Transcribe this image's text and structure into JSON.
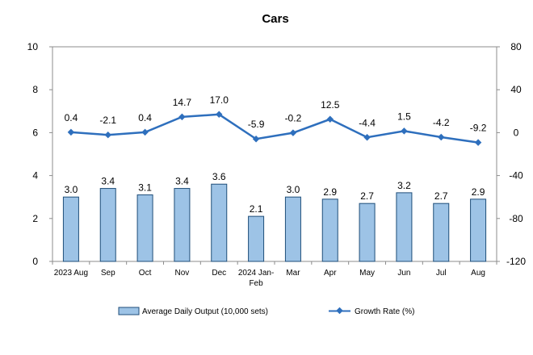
{
  "chart_data": {
    "type": "bar",
    "title": "Cars",
    "categories": [
      "2023 Aug",
      "Sep",
      "Oct",
      "Nov",
      "Dec",
      "2024 Jan-Feb",
      "Mar",
      "Apr",
      "May",
      "Jun",
      "Jul",
      "Aug"
    ],
    "series": [
      {
        "name": "Average Daily Output (10,000 sets)",
        "type": "bar",
        "axis": "left",
        "values": [
          3.0,
          3.4,
          3.1,
          3.4,
          3.6,
          2.1,
          3.0,
          2.9,
          2.7,
          3.2,
          2.7,
          2.9
        ],
        "labels": [
          "3.0",
          "3.4",
          "3.1",
          "3.4",
          "3.6",
          "2.1",
          "3.0",
          "2.9",
          "2.7",
          "3.2",
          "2.7",
          "2.9"
        ],
        "color": "#9dc3e6",
        "border": "#1f4e79"
      },
      {
        "name": "Growth Rate (%)",
        "type": "line",
        "axis": "right",
        "values": [
          0.4,
          -2.1,
          0.4,
          14.7,
          17.0,
          -5.9,
          -0.2,
          12.5,
          -4.4,
          1.5,
          -4.2,
          -9.2
        ],
        "labels": [
          "0.4",
          "-2.1",
          "0.4",
          "14.7",
          "17.0",
          "-5.9",
          "-0.2",
          "12.5",
          "-4.4",
          "1.5",
          "-4.2",
          "-9.2"
        ],
        "color": "#2e6fbd"
      }
    ],
    "y_left": {
      "min": 0,
      "max": 10,
      "ticks": [
        "0",
        "2",
        "4",
        "6",
        "8",
        "10"
      ]
    },
    "y_right": {
      "min": -120,
      "max": 80,
      "ticks": [
        "-120",
        "-80",
        "-40",
        "0",
        "40",
        "80"
      ]
    },
    "grid": false,
    "legend_position": "bottom"
  }
}
